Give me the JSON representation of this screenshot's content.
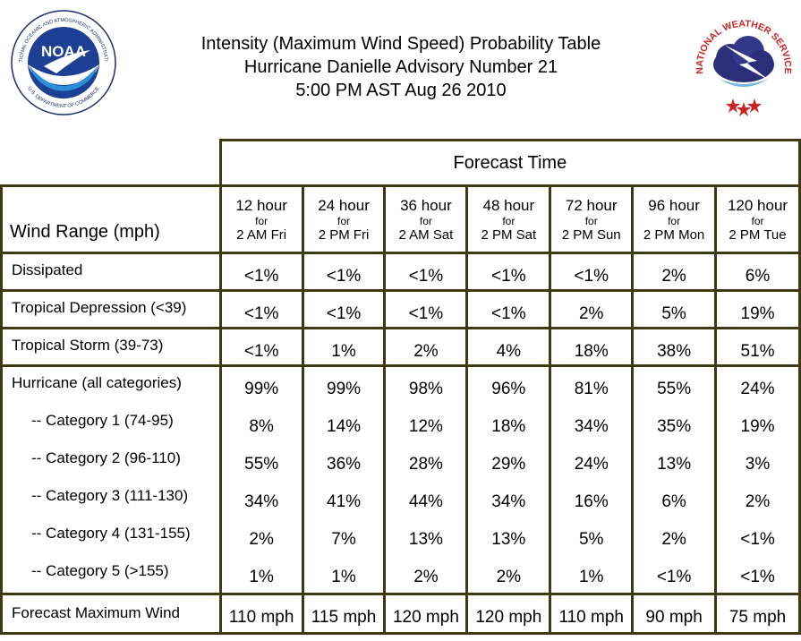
{
  "title": {
    "line1": "Intensity (Maximum Wind Speed) Probability Table",
    "line2": "Hurricane Danielle Advisory Number 21",
    "line3": "5:00 PM AST Aug 26 2010"
  },
  "logos": {
    "noaa_text": "NOAA",
    "noaa_ring": "NATIONAL OCEANIC AND ATMOSPHERIC ADMINISTRATION",
    "noaa_ring_bottom": "U.S. DEPARTMENT OF COMMERCE",
    "nws_ring": "NATIONAL WEATHER SERVICE"
  },
  "table": {
    "forecast_time_label": "Forecast Time",
    "wind_range_label": "Wind Range (mph)",
    "columns": [
      {
        "hour": "12 hour",
        "for": "for",
        "date": "2 AM Fri"
      },
      {
        "hour": "24 hour",
        "for": "for",
        "date": "2 PM Fri"
      },
      {
        "hour": "36 hour",
        "for": "for",
        "date": "2 AM Sat"
      },
      {
        "hour": "48 hour",
        "for": "for",
        "date": "2 PM Sat"
      },
      {
        "hour": "72 hour",
        "for": "for",
        "date": "2 PM Sun"
      },
      {
        "hour": "96 hour",
        "for": "for",
        "date": "2 PM Mon"
      },
      {
        "hour": "120 hour",
        "for": "for",
        "date": "2 PM Tue"
      }
    ],
    "rows": [
      {
        "label": "Dissipated",
        "values": [
          "<1%",
          "<1%",
          "<1%",
          "<1%",
          "<1%",
          "2%",
          "6%"
        ]
      },
      {
        "label": "Tropical Depression (<39)",
        "values": [
          "<1%",
          "<1%",
          "<1%",
          "<1%",
          "2%",
          "5%",
          "19%"
        ]
      },
      {
        "label": "Tropical Storm (39-73)",
        "values": [
          "<1%",
          "1%",
          "2%",
          "4%",
          "18%",
          "38%",
          "51%"
        ]
      }
    ],
    "hurricane_rows": [
      {
        "label": "Hurricane (all categories)",
        "values": [
          "99%",
          "99%",
          "98%",
          "96%",
          "81%",
          "55%",
          "24%"
        ]
      },
      {
        "label": "-- Category 1 (74-95)",
        "values": [
          "8%",
          "14%",
          "12%",
          "18%",
          "34%",
          "35%",
          "19%"
        ]
      },
      {
        "label": "-- Category 2 (96-110)",
        "values": [
          "55%",
          "36%",
          "28%",
          "29%",
          "24%",
          "13%",
          "3%"
        ]
      },
      {
        "label": "-- Category 3 (111-130)",
        "values": [
          "34%",
          "41%",
          "44%",
          "34%",
          "16%",
          "6%",
          "2%"
        ]
      },
      {
        "label": "-- Category 4 (131-155)",
        "values": [
          "2%",
          "7%",
          "13%",
          "13%",
          "5%",
          "2%",
          "<1%"
        ]
      },
      {
        "label": "-- Category 5 (>155)",
        "values": [
          "1%",
          "1%",
          "2%",
          "2%",
          "1%",
          "<1%",
          "<1%"
        ]
      }
    ],
    "max_wind": {
      "label": "Forecast Maximum Wind",
      "values": [
        "110 mph",
        "115 mph",
        "120 mph",
        "120 mph",
        "110 mph",
        "90 mph",
        "75 mph"
      ]
    }
  }
}
